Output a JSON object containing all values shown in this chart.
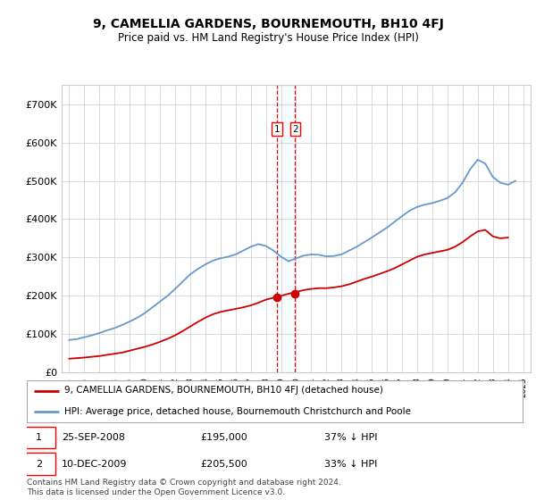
{
  "title": "9, CAMELLIA GARDENS, BOURNEMOUTH, BH10 4FJ",
  "subtitle": "Price paid vs. HM Land Registry's House Price Index (HPI)",
  "ylim": [
    0,
    750000
  ],
  "yticks": [
    0,
    100000,
    200000,
    300000,
    400000,
    500000,
    600000,
    700000
  ],
  "ytick_labels": [
    "£0",
    "£100K",
    "£200K",
    "£300K",
    "£400K",
    "£500K",
    "£600K",
    "£700K"
  ],
  "red_color": "#cc0000",
  "blue_color": "#6699cc",
  "grid_color": "#cccccc",
  "sale1_x": 2008.73,
  "sale1_price": 195000,
  "sale1_label": "25-SEP-2008",
  "sale1_price_str": "£195,000",
  "sale1_hpi_pct": "37% ↓ HPI",
  "sale2_x": 2009.94,
  "sale2_price": 205500,
  "sale2_label": "10-DEC-2009",
  "sale2_price_str": "£205,500",
  "sale2_hpi_pct": "33% ↓ HPI",
  "legend1": "9, CAMELLIA GARDENS, BOURNEMOUTH, BH10 4FJ (detached house)",
  "legend2": "HPI: Average price, detached house, Bournemouth Christchurch and Poole",
  "footer": "Contains HM Land Registry data © Crown copyright and database right 2024.\nThis data is licensed under the Open Government Licence v3.0.",
  "hpi_years": [
    1995,
    1995.5,
    1996,
    1996.5,
    1997,
    1997.5,
    1998,
    1998.5,
    1999,
    1999.5,
    2000,
    2000.5,
    2001,
    2001.5,
    2002,
    2002.5,
    2003,
    2003.5,
    2004,
    2004.5,
    2005,
    2005.5,
    2006,
    2006.5,
    2007,
    2007.5,
    2008,
    2008.5,
    2009,
    2009.5,
    2010,
    2010.5,
    2011,
    2011.5,
    2012,
    2012.5,
    2013,
    2013.5,
    2014,
    2014.5,
    2015,
    2015.5,
    2016,
    2016.5,
    2017,
    2017.5,
    2018,
    2018.5,
    2019,
    2019.5,
    2020,
    2020.5,
    2021,
    2021.5,
    2022,
    2022.5,
    2023,
    2023.5,
    2024,
    2024.5
  ],
  "hpi_values": [
    85000,
    87000,
    92000,
    97000,
    103000,
    110000,
    116000,
    124000,
    133000,
    143000,
    155000,
    170000,
    185000,
    200000,
    218000,
    237000,
    256000,
    270000,
    282000,
    292000,
    298000,
    302000,
    308000,
    318000,
    328000,
    335000,
    330000,
    318000,
    302000,
    290000,
    298000,
    305000,
    308000,
    307000,
    303000,
    304000,
    308000,
    318000,
    328000,
    340000,
    352000,
    365000,
    378000,
    393000,
    408000,
    422000,
    432000,
    438000,
    442000,
    448000,
    455000,
    470000,
    495000,
    530000,
    555000,
    545000,
    510000,
    495000,
    490000,
    500000
  ],
  "red_years": [
    1995,
    1995.5,
    1996,
    1996.5,
    1997,
    1997.5,
    1998,
    1998.5,
    1999,
    1999.5,
    2000,
    2000.5,
    2001,
    2001.5,
    2002,
    2002.5,
    2003,
    2003.5,
    2004,
    2004.5,
    2005,
    2005.5,
    2006,
    2006.5,
    2007,
    2007.5,
    2008,
    2008.5,
    2009,
    2009.5,
    2010,
    2010.5,
    2011,
    2011.5,
    2012,
    2012.5,
    2013,
    2013.5,
    2014,
    2014.5,
    2015,
    2015.5,
    2016,
    2016.5,
    2017,
    2017.5,
    2018,
    2018.5,
    2019,
    2019.5,
    2020,
    2020.5,
    2021,
    2021.5,
    2022,
    2022.5,
    2023,
    2023.5,
    2024
  ],
  "red_values": [
    36000,
    37500,
    39000,
    41000,
    43000,
    46000,
    49000,
    52000,
    57000,
    62000,
    67000,
    73000,
    80000,
    88000,
    97000,
    108000,
    120000,
    132000,
    143000,
    152000,
    158000,
    162000,
    166000,
    170000,
    175000,
    182000,
    190000,
    195000,
    200000,
    205500,
    210000,
    215000,
    218000,
    220000,
    220000,
    222000,
    225000,
    230000,
    237000,
    244000,
    250000,
    257000,
    264000,
    272000,
    282000,
    292000,
    302000,
    308000,
    312000,
    316000,
    320000,
    328000,
    340000,
    355000,
    368000,
    372000,
    355000,
    350000,
    352000
  ]
}
